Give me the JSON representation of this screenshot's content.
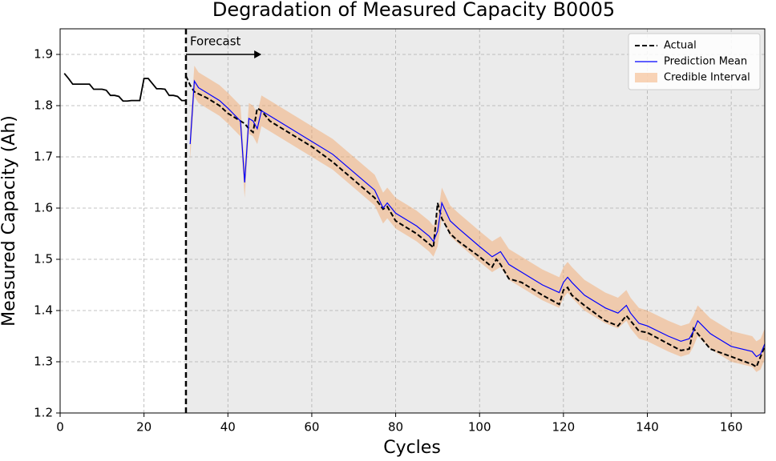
{
  "chart_data": {
    "type": "line",
    "title": "Degradation of Measured Capacity B0005",
    "xlabel": "Cycles",
    "ylabel": "Measured Capacity (Ah)",
    "xlim": [
      0,
      168
    ],
    "ylim": [
      1.2,
      1.95
    ],
    "xticks": [
      0,
      20,
      40,
      60,
      80,
      100,
      120,
      140,
      160
    ],
    "yticks": [
      1.2,
      1.3,
      1.4,
      1.5,
      1.6,
      1.7,
      1.8,
      1.9
    ],
    "grid": true,
    "legend": "upper right",
    "forecast_start": 30,
    "forecast_shade": "#ebebeb",
    "annotation": {
      "text": "Forecast",
      "x_start": 30,
      "x_end": 48,
      "y": 1.9
    },
    "series": [
      {
        "kind": "line",
        "color": "#000000",
        "x": [
          1,
          2,
          3,
          4,
          5,
          6,
          7,
          8,
          9,
          10,
          11,
          12,
          13,
          14,
          15,
          16,
          17,
          18,
          19,
          20,
          21,
          22,
          23,
          24,
          25,
          26,
          27,
          28,
          29,
          30
        ],
        "values": [
          1.863,
          1.853,
          1.842,
          1.842,
          1.842,
          1.842,
          1.842,
          1.832,
          1.832,
          1.832,
          1.83,
          1.82,
          1.82,
          1.818,
          1.809,
          1.809,
          1.81,
          1.81,
          1.81,
          1.853,
          1.853,
          1.843,
          1.833,
          1.833,
          1.832,
          1.82,
          1.82,
          1.818,
          1.81,
          1.81
        ]
      },
      {
        "name": "Actual",
        "kind": "line",
        "dash": true,
        "color": "#000000",
        "x": [
          30,
          31,
          32,
          35,
          38,
          40,
          43,
          44,
          45,
          46,
          47,
          48,
          50,
          55,
          60,
          65,
          70,
          75,
          77,
          78,
          80,
          85,
          88,
          89,
          90,
          91,
          93,
          95,
          100,
          103,
          104,
          105,
          107,
          110,
          115,
          119,
          120,
          121,
          122,
          125,
          130,
          133,
          135,
          136,
          138,
          140,
          145,
          148,
          150,
          151,
          152,
          155,
          160,
          165,
          166,
          167,
          168
        ],
        "values": [
          1.858,
          1.84,
          1.827,
          1.815,
          1.8,
          1.785,
          1.77,
          1.765,
          1.755,
          1.748,
          1.795,
          1.79,
          1.77,
          1.745,
          1.72,
          1.69,
          1.655,
          1.62,
          1.598,
          1.603,
          1.575,
          1.55,
          1.53,
          1.523,
          1.61,
          1.58,
          1.55,
          1.535,
          1.505,
          1.485,
          1.5,
          1.49,
          1.462,
          1.455,
          1.43,
          1.412,
          1.44,
          1.445,
          1.43,
          1.41,
          1.38,
          1.37,
          1.39,
          1.38,
          1.36,
          1.357,
          1.335,
          1.322,
          1.325,
          1.365,
          1.355,
          1.325,
          1.31,
          1.295,
          1.29,
          1.31,
          1.33
        ]
      },
      {
        "name": "Prediction Mean",
        "kind": "line",
        "color": "#0000ff",
        "x": [
          31,
          32,
          33,
          35,
          38,
          40,
          43,
          44,
          45,
          46,
          47,
          48,
          50,
          55,
          60,
          65,
          70,
          75,
          77,
          78,
          80,
          85,
          88,
          89,
          90,
          91,
          93,
          95,
          100,
          103,
          104,
          105,
          107,
          110,
          115,
          119,
          120,
          121,
          122,
          125,
          130,
          133,
          135,
          136,
          138,
          140,
          145,
          148,
          150,
          151,
          152,
          155,
          160,
          165,
          166,
          167,
          168
        ],
        "values": [
          1.725,
          1.848,
          1.835,
          1.825,
          1.81,
          1.795,
          1.77,
          1.65,
          1.775,
          1.77,
          1.755,
          1.79,
          1.78,
          1.755,
          1.73,
          1.705,
          1.67,
          1.635,
          1.6,
          1.61,
          1.59,
          1.565,
          1.545,
          1.535,
          1.555,
          1.61,
          1.575,
          1.56,
          1.525,
          1.505,
          1.51,
          1.515,
          1.49,
          1.475,
          1.45,
          1.435,
          1.455,
          1.465,
          1.455,
          1.43,
          1.405,
          1.395,
          1.41,
          1.395,
          1.375,
          1.37,
          1.35,
          1.34,
          1.345,
          1.36,
          1.38,
          1.355,
          1.33,
          1.32,
          1.31,
          1.315,
          1.335
        ]
      },
      {
        "name": "Credible Interval",
        "kind": "band",
        "color": "#f4a261",
        "x": [
          31,
          32,
          33,
          35,
          38,
          40,
          43,
          44,
          45,
          46,
          47,
          48,
          50,
          55,
          60,
          65,
          70,
          75,
          77,
          78,
          80,
          85,
          88,
          89,
          90,
          91,
          93,
          95,
          100,
          103,
          104,
          105,
          107,
          110,
          115,
          119,
          120,
          121,
          122,
          125,
          130,
          133,
          135,
          136,
          138,
          140,
          145,
          148,
          150,
          151,
          152,
          155,
          160,
          165,
          166,
          167,
          168
        ],
        "lower": [
          1.695,
          1.818,
          1.805,
          1.795,
          1.78,
          1.765,
          1.74,
          1.62,
          1.745,
          1.74,
          1.725,
          1.76,
          1.75,
          1.725,
          1.7,
          1.675,
          1.64,
          1.605,
          1.57,
          1.58,
          1.56,
          1.535,
          1.515,
          1.505,
          1.525,
          1.58,
          1.545,
          1.53,
          1.495,
          1.475,
          1.48,
          1.485,
          1.46,
          1.445,
          1.42,
          1.405,
          1.425,
          1.435,
          1.425,
          1.4,
          1.375,
          1.365,
          1.38,
          1.365,
          1.345,
          1.34,
          1.32,
          1.31,
          1.315,
          1.33,
          1.35,
          1.325,
          1.3,
          1.29,
          1.28,
          1.285,
          1.305
        ],
        "upper": [
          1.755,
          1.878,
          1.865,
          1.855,
          1.84,
          1.825,
          1.8,
          1.68,
          1.805,
          1.8,
          1.785,
          1.82,
          1.81,
          1.785,
          1.76,
          1.735,
          1.7,
          1.665,
          1.63,
          1.64,
          1.62,
          1.595,
          1.575,
          1.565,
          1.585,
          1.64,
          1.605,
          1.59,
          1.555,
          1.535,
          1.54,
          1.545,
          1.52,
          1.505,
          1.48,
          1.465,
          1.485,
          1.495,
          1.485,
          1.46,
          1.435,
          1.425,
          1.44,
          1.425,
          1.405,
          1.4,
          1.38,
          1.37,
          1.375,
          1.39,
          1.41,
          1.385,
          1.36,
          1.35,
          1.34,
          1.345,
          1.365
        ]
      }
    ]
  }
}
